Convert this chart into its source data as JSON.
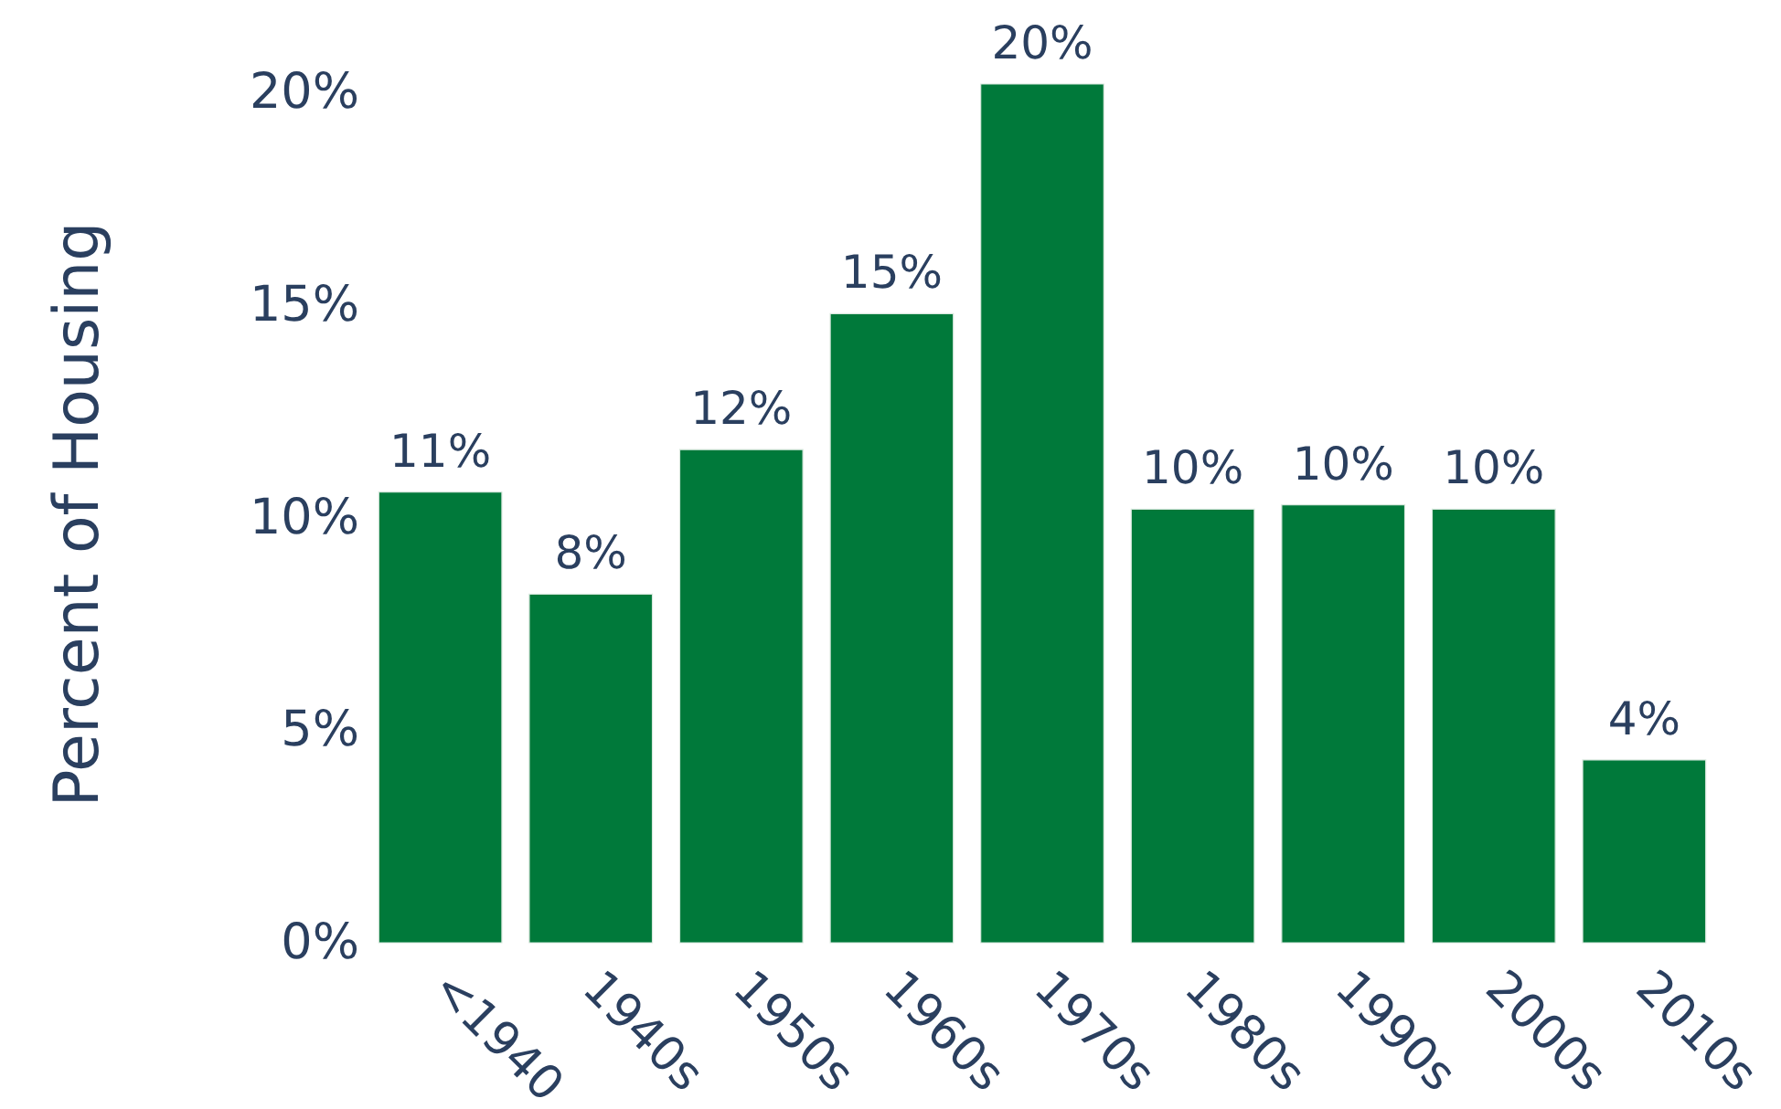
{
  "chart_data": {
    "type": "bar",
    "ylabel": "Percent of Housing",
    "categories": [
      "<1940",
      "1940s",
      "1950s",
      "1960s",
      "1970s",
      "1980s",
      "1990s",
      "2000s",
      "2010s"
    ],
    "values": [
      10.6,
      8.2,
      11.6,
      14.8,
      20.2,
      10.2,
      10.3,
      10.2,
      4.3
    ],
    "value_labels": [
      "11%",
      "8%",
      "12%",
      "15%",
      "20%",
      "10%",
      "10%",
      "10%",
      "4%"
    ],
    "color": "#00793a",
    "ylim": [
      0,
      20.2
    ],
    "yticks": [
      {
        "value": 0,
        "label": "0%"
      },
      {
        "value": 5,
        "label": "5%"
      },
      {
        "value": 10,
        "label": "10%"
      },
      {
        "value": 15,
        "label": "15%"
      },
      {
        "value": 20,
        "label": "20%"
      }
    ]
  }
}
